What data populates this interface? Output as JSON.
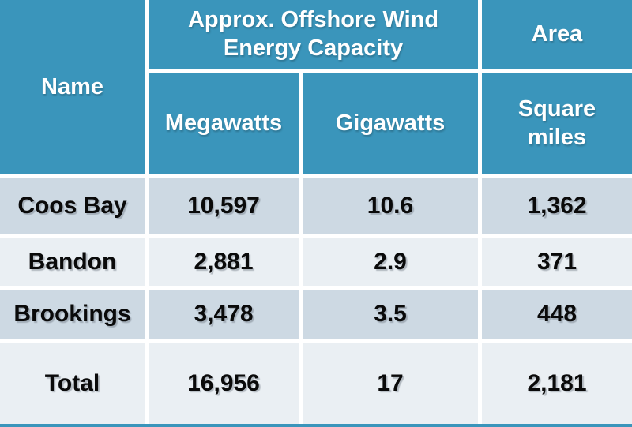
{
  "colors": {
    "header_bg": "#3A95BB",
    "row_dark": "#CDD9E3",
    "row_light": "#EAEFF3",
    "divider": "#FFFFFF",
    "header_text": "#FFFFFF",
    "data_text": "#0A0A0A"
  },
  "chart_data": {
    "type": "table",
    "header": {
      "name": "Name",
      "capacity_group": "Approx. Offshore Wind Energy Capacity",
      "area_group": "Area",
      "megawatts": "Megawatts",
      "gigawatts": "Gigawatts",
      "square_miles": "Square miles"
    },
    "rows": [
      {
        "name": "Coos Bay",
        "megawatts": "10,597",
        "gigawatts": "10.6",
        "square_miles": "1,362",
        "megawatts_value": 10597,
        "gigawatts_value": 10.6,
        "square_miles_value": 1362
      },
      {
        "name": "Bandon",
        "megawatts": "2,881",
        "gigawatts": "2.9",
        "square_miles": "371",
        "megawatts_value": 2881,
        "gigawatts_value": 2.9,
        "square_miles_value": 371
      },
      {
        "name": "Brookings",
        "megawatts": "3,478",
        "gigawatts": "3.5",
        "square_miles": "448",
        "megawatts_value": 3478,
        "gigawatts_value": 3.5,
        "square_miles_value": 448
      },
      {
        "name": "Total",
        "megawatts": "16,956",
        "gigawatts": "17",
        "square_miles": "2,181",
        "megawatts_value": 16956,
        "gigawatts_value": 17,
        "square_miles_value": 2181
      }
    ]
  }
}
